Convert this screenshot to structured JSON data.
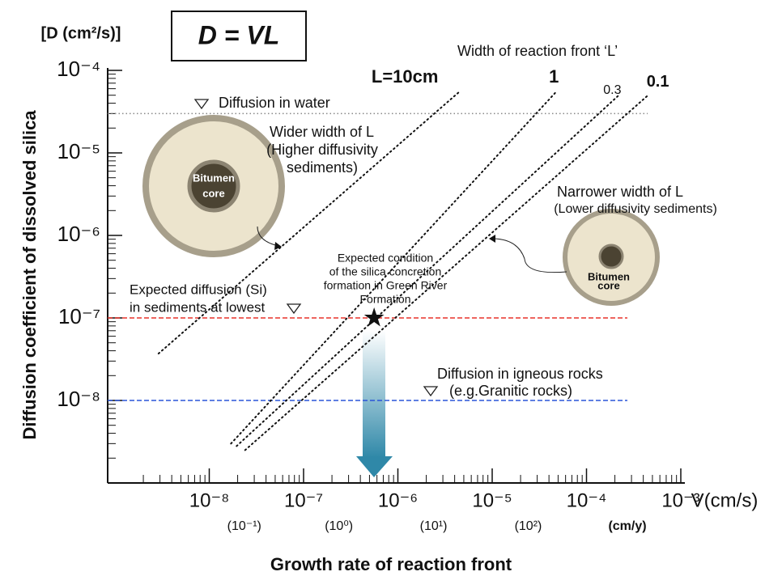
{
  "chart_data": {
    "type": "line",
    "title": "D = VL",
    "ylabel_top": "[D (cm²/s)]",
    "ylabel": "Diffusion coefficient of dissolved silica",
    "xunit": "V(cm/s)",
    "xlabel": "Growth rate of reaction front",
    "legend_title": "Width of reaction front ‘L’",
    "log_x": true,
    "log_y": true,
    "minor_ticks": true,
    "xlim": [
      1e-09,
      0.001
    ],
    "xticks": [
      {
        "value": 1e-08,
        "label": "10⁻⁸"
      },
      {
        "value": 1e-07,
        "label": "10⁻⁷"
      },
      {
        "value": 1e-06,
        "label": "10⁻⁶"
      },
      {
        "value": 1e-05,
        "label": "10⁻⁵"
      },
      {
        "value": 0.0001,
        "label": "10⁻⁴"
      },
      {
        "value": 0.001,
        "label": "10⁻³"
      }
    ],
    "ylim": [
      1e-09,
      0.0001
    ],
    "yticks": [
      {
        "value": 1e-08,
        "label": "10⁻⁸"
      },
      {
        "value": 1e-07,
        "label": "10⁻⁷"
      },
      {
        "value": 1e-06,
        "label": "10⁻⁶"
      },
      {
        "value": 1e-05,
        "label": "10⁻⁵"
      },
      {
        "value": 0.0001,
        "label": "10⁻⁴"
      }
    ],
    "x2label": "(cm/y)",
    "x2lim": [
      0.0043,
      4100
    ],
    "x2ticks": [
      {
        "value": 0.1,
        "label": "(10⁻¹)"
      },
      {
        "value": 1,
        "label": "(10⁰)"
      },
      {
        "value": 10,
        "label": "(10¹)"
      },
      {
        "value": 100,
        "label": "(10²)"
      }
    ],
    "series": [
      {
        "name": "L=10cm",
        "color": "#111111",
        "x": [
          2.9e-09,
          4.4e-06
        ],
        "values": [
          3.7e-08,
          5.4e-05
        ]
      },
      {
        "name": "1",
        "color": "#111111",
        "x": [
          1.7e-08,
          4.7e-05
        ],
        "values": [
          3e-09,
          5.4e-05
        ]
      },
      {
        "name": "0.3",
        "color": "#111111",
        "x": [
          1.95e-08,
          0.00022
        ],
        "values": [
          2.8e-09,
          5e-05
        ]
      },
      {
        "name": "0.1",
        "color": "#111111",
        "x": [
          2.4e-08,
          0.00045
        ],
        "values": [
          2.5e-09,
          5e-05
        ]
      }
    ],
    "hlines": [
      {
        "value": 3e-05,
        "color": "#888888",
        "style": "dotted"
      },
      {
        "value": 1e-07,
        "color": "#e8322a",
        "style": "dashed"
      },
      {
        "value": 1e-08,
        "color": "#2a55d8",
        "style": "dashed"
      }
    ],
    "marker": {
      "x": 5.6e-07,
      "value": 1e-07
    },
    "annotations": [
      {
        "lines": [
          "Diffusion in water"
        ]
      },
      {
        "lines": [
          "Wider width of L",
          "(Higher diffusivity",
          "sediments)"
        ]
      },
      {
        "lines": [
          "Narrower width of L",
          "(Lower diffusivity sediments)"
        ]
      },
      {
        "lines": [
          "Expected condition",
          "of the silica concretion",
          "formation in Green River",
          "Formation"
        ]
      },
      {
        "lines": [
          "Expected diffusion (Si)",
          "in sediments at lowest"
        ]
      },
      {
        "lines": [
          "Diffusion in igneous rocks",
          "(e.g.Granitic rocks)"
        ]
      },
      {
        "lines": [
          "Bitumen",
          "core"
        ]
      },
      {
        "lines": [
          "Bitumen",
          "core"
        ]
      }
    ]
  }
}
